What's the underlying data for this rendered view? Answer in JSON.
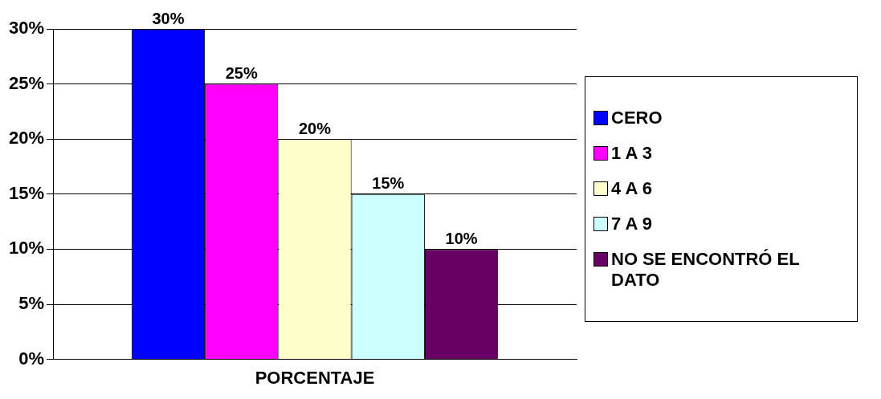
{
  "chart_data": {
    "type": "bar",
    "categories": [
      "PORCENTAJE"
    ],
    "series": [
      {
        "name": "CERO",
        "color": "#0000ff",
        "values": [
          30
        ],
        "value_labels": [
          "30%"
        ]
      },
      {
        "name": "1 A 3",
        "color": "#ff00ff",
        "values": [
          25
        ],
        "value_labels": [
          "25%"
        ]
      },
      {
        "name": "4 A 6",
        "color": "#ffffcc",
        "values": [
          20
        ],
        "value_labels": [
          "20%"
        ]
      },
      {
        "name": "7 A 9",
        "color": "#ccffff",
        "values": [
          15
        ],
        "value_labels": [
          "15%"
        ]
      },
      {
        "name": "NO SE ENCONTRÓ EL DATO",
        "color": "#660066",
        "values": [
          10
        ],
        "value_labels": [
          "10%"
        ]
      }
    ],
    "ylim": [
      0,
      30
    ],
    "yticks": [
      {
        "value": 0,
        "label": "0%"
      },
      {
        "value": 5,
        "label": "5%"
      },
      {
        "value": 10,
        "label": "10%"
      },
      {
        "value": 15,
        "label": "15%"
      },
      {
        "value": 20,
        "label": "20%"
      },
      {
        "value": 25,
        "label": "25%"
      },
      {
        "value": 30,
        "label": "30%"
      }
    ],
    "grid": "y",
    "legend": "right"
  }
}
